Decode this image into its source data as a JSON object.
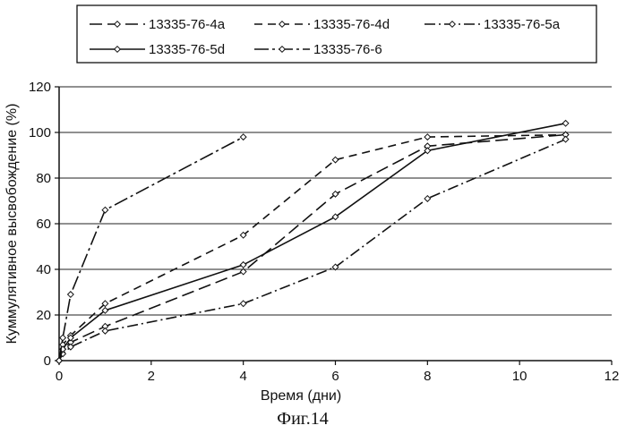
{
  "figure": {
    "caption": "Фиг.14"
  },
  "chart_data": {
    "type": "line",
    "title": "",
    "xlabel": "Время (дни)",
    "ylabel": "Куммулятивное высвобождение (%)",
    "xlim": [
      0,
      12
    ],
    "ylim": [
      0,
      120
    ],
    "xticks": [
      0,
      2,
      4,
      6,
      8,
      10,
      12
    ],
    "yticks": [
      0,
      20,
      40,
      60,
      80,
      100,
      120
    ],
    "grid": "horizontal",
    "legend_position": "top",
    "series": [
      {
        "name": "13335-76-4a",
        "dash": "long-dash",
        "points": [
          [
            0,
            0
          ],
          [
            0.08,
            5
          ],
          [
            0.25,
            8
          ],
          [
            1,
            15
          ],
          [
            4,
            39
          ],
          [
            6,
            73
          ],
          [
            8,
            94
          ],
          [
            11,
            99
          ]
        ]
      },
      {
        "name": "13335-76-4d",
        "dash": "medium-dash",
        "points": [
          [
            0,
            0
          ],
          [
            0.08,
            7
          ],
          [
            0.25,
            11
          ],
          [
            1,
            25
          ],
          [
            4,
            55
          ],
          [
            6,
            88
          ],
          [
            8,
            98
          ],
          [
            11,
            99
          ]
        ]
      },
      {
        "name": "13335-76-5a",
        "dash": "dash-dot",
        "points": [
          [
            0,
            0
          ],
          [
            0.08,
            3
          ],
          [
            0.25,
            6
          ],
          [
            1,
            13
          ],
          [
            4,
            25
          ],
          [
            6,
            41
          ],
          [
            8,
            71
          ],
          [
            11,
            97
          ]
        ]
      },
      {
        "name": "13335-76-5d",
        "dash": "solid",
        "points": [
          [
            0,
            0
          ],
          [
            0.08,
            5
          ],
          [
            0.25,
            10
          ],
          [
            1,
            22
          ],
          [
            4,
            42
          ],
          [
            6,
            63
          ],
          [
            8,
            92
          ],
          [
            11,
            104
          ]
        ]
      },
      {
        "name": "13335-76-6",
        "dash": "dash-dot-long",
        "points": [
          [
            0,
            0
          ],
          [
            0.08,
            10
          ],
          [
            0.25,
            29
          ],
          [
            1,
            66
          ],
          [
            4,
            98
          ]
        ]
      }
    ]
  }
}
